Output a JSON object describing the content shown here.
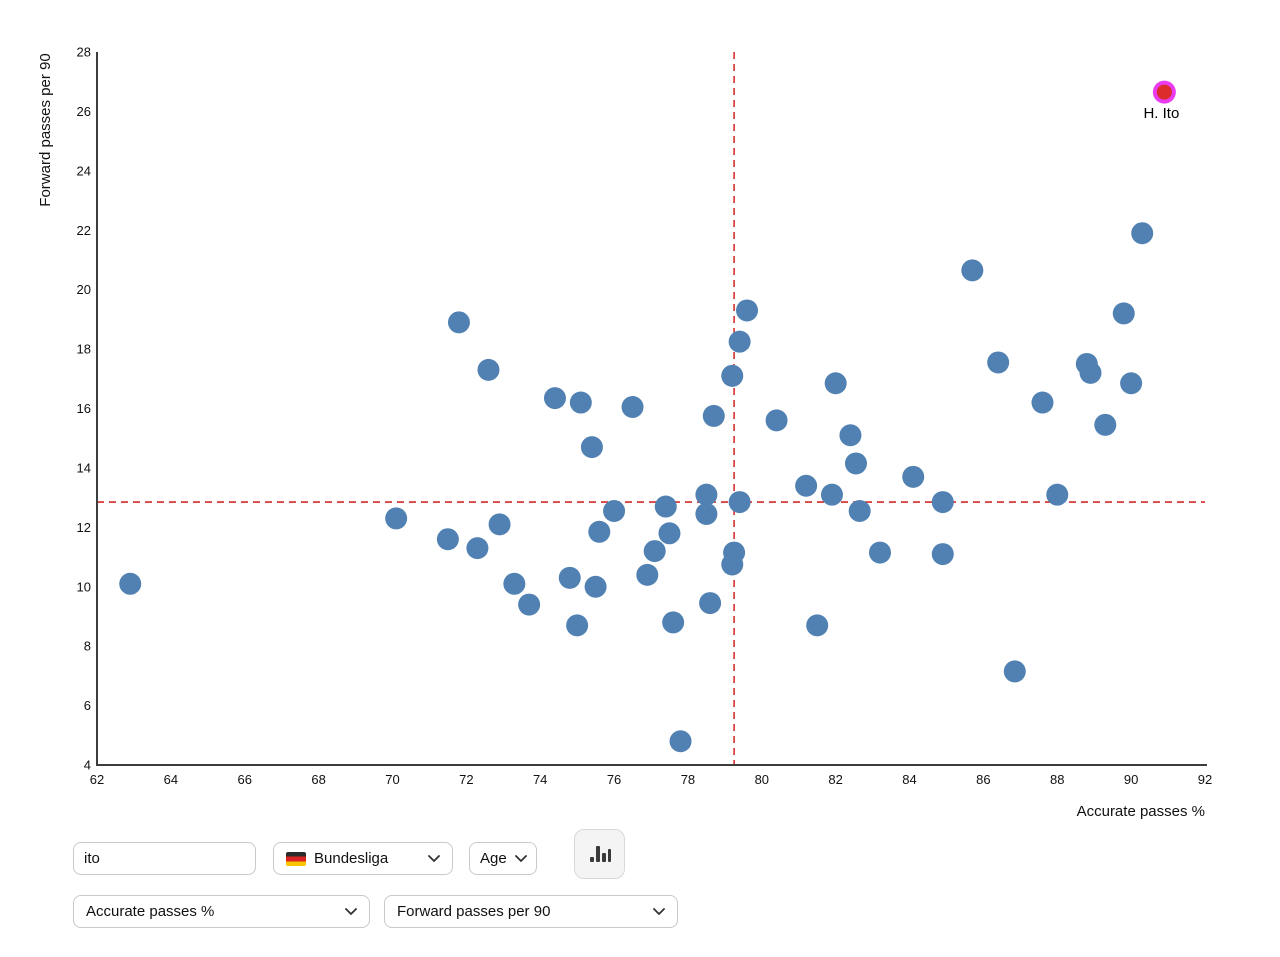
{
  "chart_data": {
    "type": "scatter",
    "title": "",
    "xlabel": "Accurate passes %",
    "ylabel": "Forward passes per 90",
    "xlim": [
      62,
      92
    ],
    "ylim": [
      4,
      28
    ],
    "xtick_step": 2,
    "ytick_step": 2,
    "grid": false,
    "legend": "none",
    "point_color": "#5181b2",
    "point_radius": 11,
    "axis_color": "#3d3d3d",
    "mean_lines": {
      "x": 79.25,
      "y": 12.85,
      "color": "#dd4444",
      "style": "dashed"
    },
    "points": [
      [
        62.9,
        10.1
      ],
      [
        70.1,
        12.3
      ],
      [
        71.5,
        11.6
      ],
      [
        71.8,
        18.9
      ],
      [
        72.3,
        11.3
      ],
      [
        72.6,
        17.3
      ],
      [
        72.9,
        12.1
      ],
      [
        73.3,
        10.1
      ],
      [
        73.7,
        9.4
      ],
      [
        74.4,
        16.35
      ],
      [
        74.8,
        10.3
      ],
      [
        75.0,
        8.7
      ],
      [
        75.1,
        16.2
      ],
      [
        75.4,
        14.7
      ],
      [
        75.5,
        10.0
      ],
      [
        75.6,
        11.85
      ],
      [
        76.0,
        12.55
      ],
      [
        76.5,
        16.05
      ],
      [
        76.9,
        10.4
      ],
      [
        77.1,
        11.2
      ],
      [
        77.4,
        12.7
      ],
      [
        77.5,
        11.8
      ],
      [
        77.6,
        8.8
      ],
      [
        77.8,
        4.8
      ],
      [
        78.5,
        13.1
      ],
      [
        78.5,
        12.45
      ],
      [
        78.6,
        9.45
      ],
      [
        78.7,
        15.75
      ],
      [
        79.2,
        17.1
      ],
      [
        79.4,
        18.25
      ],
      [
        79.6,
        19.3
      ],
      [
        79.4,
        12.85
      ],
      [
        79.25,
        11.15
      ],
      [
        79.2,
        10.75
      ],
      [
        80.4,
        15.6
      ],
      [
        81.2,
        13.4
      ],
      [
        81.5,
        8.7
      ],
      [
        81.9,
        13.1
      ],
      [
        82.0,
        16.85
      ],
      [
        82.4,
        15.1
      ],
      [
        82.55,
        14.15
      ],
      [
        82.65,
        12.55
      ],
      [
        83.2,
        11.15
      ],
      [
        84.1,
        13.7
      ],
      [
        84.9,
        12.85
      ],
      [
        84.9,
        11.1
      ],
      [
        85.7,
        20.65
      ],
      [
        86.4,
        17.55
      ],
      [
        86.85,
        7.15
      ],
      [
        87.6,
        16.2
      ],
      [
        88.0,
        13.1
      ],
      [
        88.8,
        17.5
      ],
      [
        88.9,
        17.2
      ],
      [
        89.3,
        15.45
      ],
      [
        89.8,
        19.2
      ],
      [
        90.0,
        16.85
      ],
      [
        90.3,
        21.9
      ]
    ],
    "highlight": {
      "label": "H. Ito",
      "x": 90.9,
      "y": 26.65,
      "ring_color": "#e93cee",
      "fill_color": "#dc2c2c"
    }
  },
  "controls": {
    "search_input": {
      "value": "ito",
      "placeholder": ""
    },
    "league_select": {
      "label": "Bundesliga",
      "flag": "germany-flag"
    },
    "age_select": {
      "label": "Age"
    },
    "chart_type_button": {
      "icon": "bar-chart"
    },
    "x_metric_select": {
      "value": "Accurate passes %"
    },
    "y_metric_select": {
      "value": "Forward passes per 90"
    }
  }
}
